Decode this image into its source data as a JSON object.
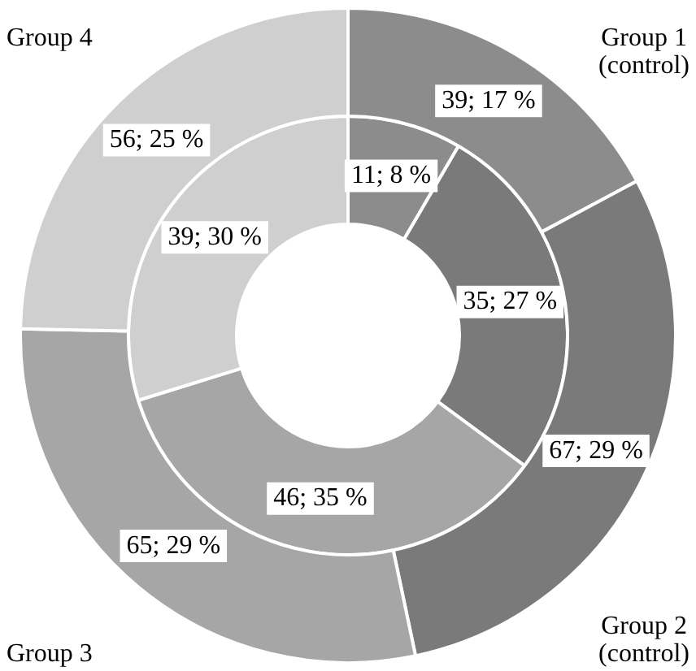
{
  "chart_data": {
    "type": "donut",
    "categories": [
      "Group 1 (control)",
      "Group 2 (control)",
      "Group 3",
      "Group 4"
    ],
    "colors": [
      "#8c8c8c",
      "#7a7a7a",
      "#a6a6a6",
      "#cfcfcf"
    ],
    "series": [
      {
        "values": [
          39,
          67,
          65,
          56
        ],
        "value_labels": [
          "39; 17 %",
          "67; 29 %",
          "65; 29 %",
          "56; 25 %"
        ]
      },
      {
        "values": [
          11,
          35,
          46,
          39
        ],
        "value_labels": [
          "11; 8 %",
          "35; 27 %",
          "46; 35 %",
          "39; 30 %"
        ]
      }
    ],
    "legend": false
  }
}
